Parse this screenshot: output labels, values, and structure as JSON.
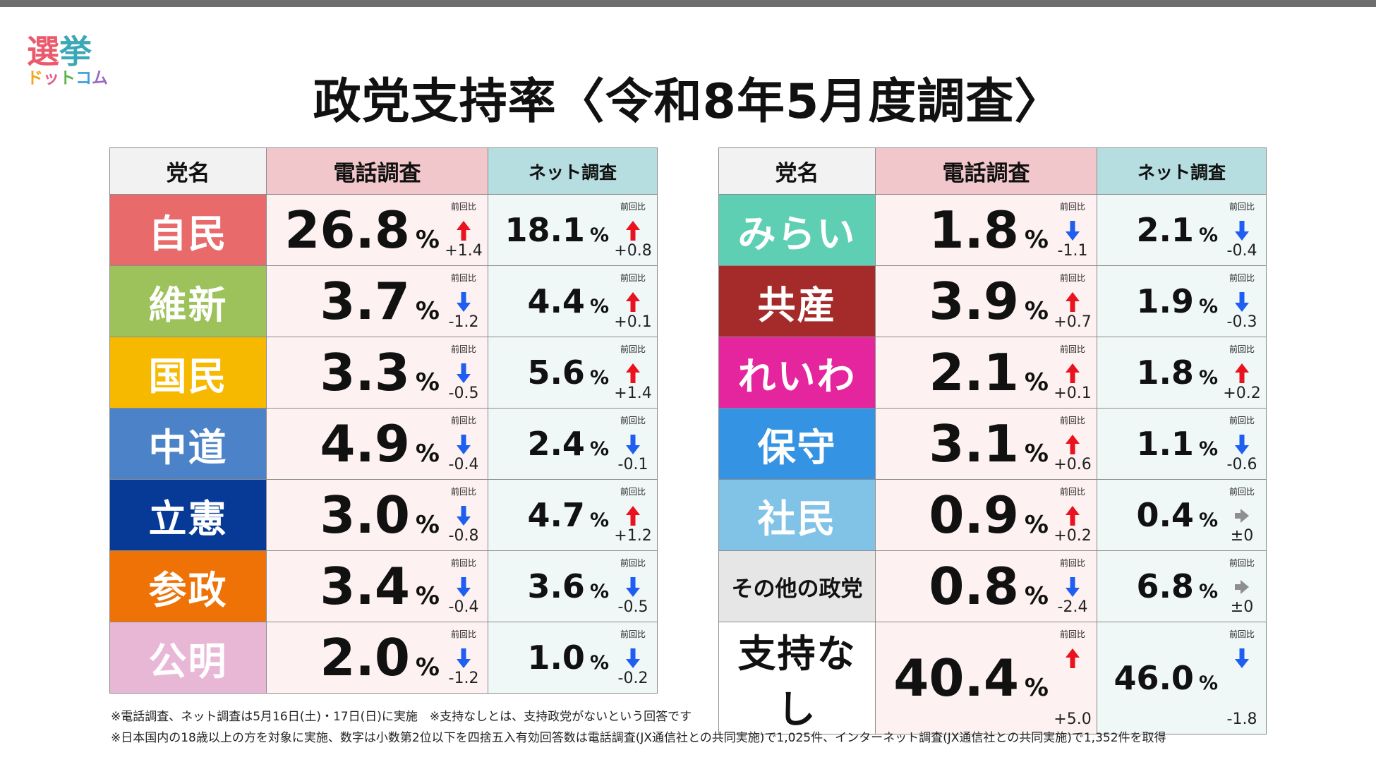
{
  "logo": {
    "main_1": "選",
    "main_2": "挙",
    "sub": [
      "ド",
      "ッ",
      "ト",
      "コ",
      "ム"
    ]
  },
  "title": "政党支持率〈令和8年5月度調査〉",
  "headers": {
    "party": "党名",
    "tel": "電話調査",
    "net": "ネット調査",
    "prev": "前回比"
  },
  "colors": {
    "up": "#e8131f",
    "down": "#1f5ef0",
    "flat": "#8f8f8f"
  },
  "chart_data": {
    "type": "table",
    "title": "政党支持率〈令和8年5月度調査〉",
    "columns": [
      "党名",
      "電話調査",
      "前回比",
      "ネット調査",
      "前回比"
    ],
    "unit": "%",
    "left_rows": [
      {
        "party": "自民",
        "color": "#e96a6a",
        "tel": "26.8",
        "tel_dir": "up",
        "tel_diff": "+1.4",
        "net": "18.1",
        "net_dir": "up",
        "net_diff": "+0.8"
      },
      {
        "party": "維新",
        "color": "#9dc25b",
        "tel": "3.7",
        "tel_dir": "down",
        "tel_diff": "-1.2",
        "net": "4.4",
        "net_dir": "up",
        "net_diff": "+0.1"
      },
      {
        "party": "国民",
        "color": "#f7b800",
        "tel": "3.3",
        "tel_dir": "down",
        "tel_diff": "-0.5",
        "net": "5.6",
        "net_dir": "up",
        "net_diff": "+1.4"
      },
      {
        "party": "中道",
        "color": "#4c82c8",
        "tel": "4.9",
        "tel_dir": "down",
        "tel_diff": "-0.4",
        "net": "2.4",
        "net_dir": "down",
        "net_diff": "-0.1"
      },
      {
        "party": "立憲",
        "color": "#063a96",
        "tel": "3.0",
        "tel_dir": "down",
        "tel_diff": "-0.8",
        "net": "4.7",
        "net_dir": "up",
        "net_diff": "+1.2"
      },
      {
        "party": "参政",
        "color": "#ee7205",
        "tel": "3.4",
        "tel_dir": "down",
        "tel_diff": "-0.4",
        "net": "3.6",
        "net_dir": "down",
        "net_diff": "-0.5"
      },
      {
        "party": "公明",
        "color": "#e9b7d6",
        "tel": "2.0",
        "tel_dir": "down",
        "tel_diff": "-1.2",
        "net": "1.0",
        "net_dir": "down",
        "net_diff": "-0.2"
      }
    ],
    "right_rows": [
      {
        "party": "みらい",
        "color": "#5fcfb4",
        "tel": "1.8",
        "tel_dir": "down",
        "tel_diff": "-1.1",
        "net": "2.1",
        "net_dir": "down",
        "net_diff": "-0.4"
      },
      {
        "party": "共産",
        "color": "#a52a2a",
        "tel": "3.9",
        "tel_dir": "up",
        "tel_diff": "+0.7",
        "net": "1.9",
        "net_dir": "down",
        "net_diff": "-0.3"
      },
      {
        "party": "れいわ",
        "color": "#e5259d",
        "tel": "2.1",
        "tel_dir": "up",
        "tel_diff": "+0.1",
        "net": "1.8",
        "net_dir": "up",
        "net_diff": "+0.2"
      },
      {
        "party": "保守",
        "color": "#3493e3",
        "tel": "3.1",
        "tel_dir": "up",
        "tel_diff": "+0.6",
        "net": "1.1",
        "net_dir": "down",
        "net_diff": "-0.6"
      },
      {
        "party": "社民",
        "color": "#80c3e6",
        "tel": "0.9",
        "tel_dir": "up",
        "tel_diff": "+0.2",
        "net": "0.4",
        "net_dir": "flat",
        "net_diff": "±0"
      },
      {
        "party": "その他の政党",
        "color": "#e6e6e6",
        "text_color": "#111111",
        "tel": "0.8",
        "tel_dir": "down",
        "tel_diff": "-2.4",
        "net": "6.8",
        "net_dir": "flat",
        "net_diff": "±0"
      },
      {
        "party": "支持なし",
        "color": "#ffffff",
        "text_color": "#111111",
        "tel": "40.4",
        "tel_dir": "up",
        "tel_diff": "+5.0",
        "net": "46.0",
        "net_dir": "down",
        "net_diff": "-1.8"
      }
    ]
  },
  "notes": [
    "※電話調査、ネット調査は5月16日(土)・17日(日)に実施　※支持なしとは、支持政党がないという回答です",
    "※日本国内の18歳以上の方を対象に実施、数字は小数第2位以下を四捨五入有効回答数は電話調査(JX通信社との共同実施)で1,025件、インターネット調査(JX通信社との共同実施)で1,352件を取得"
  ]
}
